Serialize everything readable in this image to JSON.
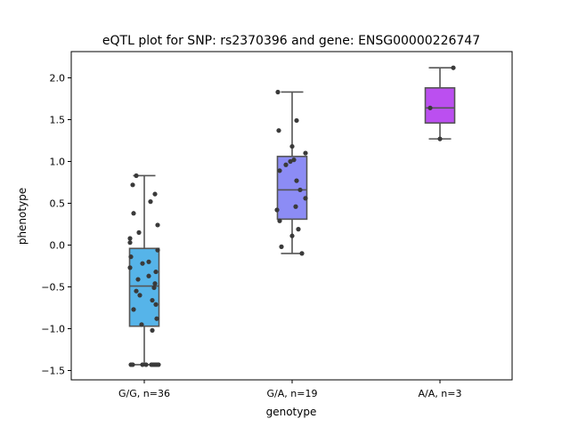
{
  "chart_data": {
    "type": "box",
    "title": "eQTL plot for SNP: rs2370396 and gene: ENSG00000226747",
    "xlabel": "genotype",
    "ylabel": "phenotype",
    "ylim": [
      -1.6,
      2.3
    ],
    "yticks": [
      -1.5,
      -1.0,
      -0.5,
      0.0,
      0.5,
      1.0,
      1.5,
      2.0
    ],
    "ytick_labels": [
      "−1.5",
      "−1.0",
      "−0.5",
      "0.0",
      "0.5",
      "1.0",
      "1.5",
      "2.0"
    ],
    "categories": [
      "G/G, n=36",
      "G/A, n=19",
      "A/A, n=3"
    ],
    "grid": false,
    "colors": [
      "#56b4e9",
      "#8c8cf5",
      "#bb4ff0"
    ],
    "edge_color": "#555555",
    "point_color": "#3a3a3a",
    "boxes": [
      {
        "whisker_low": -1.43,
        "q1": -0.97,
        "median": -0.49,
        "q3": -0.04,
        "whisker_high": 0.83
      },
      {
        "whisker_low": -0.1,
        "q1": 0.31,
        "median": 0.66,
        "q3": 1.06,
        "whisker_high": 1.83
      },
      {
        "whisker_low": 1.27,
        "q1": 1.46,
        "median": 1.64,
        "q3": 1.88,
        "whisker_high": 2.12
      }
    ],
    "points": [
      [
        [
          -0.09,
          0.83
        ],
        [
          -0.13,
          0.72
        ],
        [
          0.12,
          0.61
        ],
        [
          0.07,
          0.52
        ],
        [
          -0.12,
          0.38
        ],
        [
          0.15,
          0.24
        ],
        [
          -0.06,
          0.15
        ],
        [
          -0.16,
          0.08
        ],
        [
          -0.16,
          0.03
        ],
        [
          0.15,
          -0.06
        ],
        [
          -0.15,
          -0.14
        ],
        [
          0.05,
          -0.2
        ],
        [
          -0.02,
          -0.22
        ],
        [
          -0.16,
          -0.27
        ],
        [
          0.13,
          -0.32
        ],
        [
          0.05,
          -0.37
        ],
        [
          -0.07,
          -0.41
        ],
        [
          0.12,
          -0.46
        ],
        [
          0.11,
          -0.51
        ],
        [
          -0.09,
          -0.55
        ],
        [
          -0.05,
          -0.6
        ],
        [
          0.09,
          -0.66
        ],
        [
          0.13,
          -0.71
        ],
        [
          -0.12,
          -0.77
        ],
        [
          0.14,
          -0.88
        ],
        [
          -0.03,
          -0.95
        ],
        [
          0.09,
          -1.02
        ],
        [
          -0.15,
          -1.43
        ],
        [
          -0.13,
          -1.43
        ],
        [
          -0.02,
          -1.43
        ],
        [
          0.02,
          -1.43
        ],
        [
          0.08,
          -1.43
        ],
        [
          0.1,
          -1.43
        ],
        [
          0.12,
          -1.43
        ],
        [
          0.14,
          -1.43
        ],
        [
          0.16,
          -1.43
        ]
      ],
      [
        [
          -0.16,
          1.83
        ],
        [
          0.05,
          1.49
        ],
        [
          -0.15,
          1.37
        ],
        [
          0.15,
          1.1
        ],
        [
          0.0,
          1.18
        ],
        [
          0.02,
          1.02
        ],
        [
          -0.07,
          0.96
        ],
        [
          -0.14,
          0.89
        ],
        [
          0.05,
          0.77
        ],
        [
          0.09,
          0.66
        ],
        [
          0.15,
          0.56
        ],
        [
          0.04,
          0.46
        ],
        [
          -0.17,
          0.42
        ],
        [
          -0.14,
          0.29
        ],
        [
          0.07,
          0.19
        ],
        [
          0.0,
          0.11
        ],
        [
          -0.12,
          -0.02
        ],
        [
          0.11,
          -0.1
        ],
        [
          -0.02,
          1.0
        ]
      ],
      [
        [
          0.15,
          2.12
        ],
        [
          -0.11,
          1.64
        ],
        [
          0.0,
          1.27
        ]
      ]
    ]
  }
}
